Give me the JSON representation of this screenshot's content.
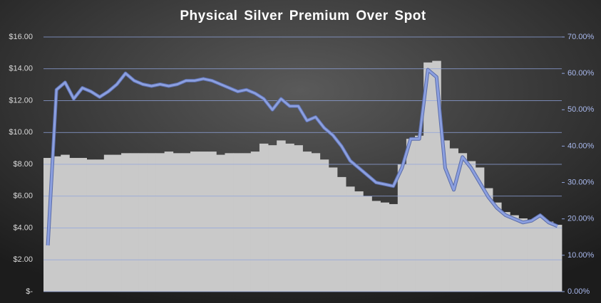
{
  "chart_data": {
    "type": "bar-line",
    "title": "Physical Silver Premium Over Spot",
    "categories": [
      null,
      null,
      null,
      null,
      null,
      null,
      null,
      null,
      null,
      null,
      null,
      null,
      null,
      null,
      null,
      null,
      null,
      null,
      null,
      null,
      null,
      null,
      null,
      null,
      null,
      null,
      null,
      null,
      null,
      null,
      null,
      null,
      null,
      null,
      null,
      null,
      null,
      null,
      null,
      null,
      null,
      null,
      null,
      null,
      null,
      null,
      null,
      null,
      null,
      null,
      null,
      null,
      null,
      null,
      null,
      null,
      null,
      null,
      null,
      null
    ],
    "series": [
      {
        "kind": "bar",
        "color": "#c9c9c9",
        "values": [
          8.4,
          8.5,
          8.6,
          8.4,
          8.4,
          8.3,
          8.3,
          8.6,
          8.6,
          8.7,
          8.7,
          8.7,
          8.7,
          8.7,
          8.8,
          8.7,
          8.7,
          8.8,
          8.8,
          8.8,
          8.6,
          8.7,
          8.7,
          8.7,
          8.8,
          9.3,
          9.2,
          9.5,
          9.3,
          9.2,
          8.8,
          8.7,
          8.3,
          7.8,
          7.2,
          6.6,
          6.3,
          6.0,
          5.7,
          5.6,
          5.5,
          8.0,
          9.6,
          9.8,
          14.4,
          14.5,
          9.5,
          9.0,
          8.7,
          8.2,
          7.8,
          6.5,
          5.6,
          5.0,
          4.8,
          4.6,
          4.5,
          4.7,
          4.4,
          4.2
        ]
      },
      {
        "kind": "line",
        "axis": "y2",
        "color": "#8b9fe0",
        "values": [
          12.7,
          55.5,
          57.5,
          53,
          56,
          55,
          53.5,
          55,
          57,
          60,
          58,
          57,
          56.5,
          57,
          56.5,
          57,
          58,
          58,
          58.5,
          58,
          57,
          56,
          55,
          55.5,
          54.5,
          53,
          50,
          53,
          51,
          51,
          47,
          48,
          45,
          43,
          40,
          36,
          34,
          32,
          30,
          29.5,
          29,
          34,
          42,
          42,
          61,
          59,
          34,
          28,
          37,
          34,
          30,
          26,
          23,
          21,
          20,
          19,
          19.5,
          21,
          19,
          18
        ]
      }
    ],
    "ylim": [
      0,
      16
    ],
    "yticks": [
      {
        "value": 0,
        "label": "$-"
      },
      {
        "value": 2,
        "label": "$2.00"
      },
      {
        "value": 4,
        "label": "$4.00"
      },
      {
        "value": 6,
        "label": "$6.00"
      },
      {
        "value": 8,
        "label": "$8.00"
      },
      {
        "value": 10,
        "label": "$10.00"
      },
      {
        "value": 12,
        "label": "$12.00"
      },
      {
        "value": 14,
        "label": "$14.00"
      },
      {
        "value": 16,
        "label": "$16.00"
      }
    ],
    "y2lim": [
      0,
      70
    ],
    "y2ticks": [
      {
        "value": 0,
        "label": "0.00%"
      },
      {
        "value": 10,
        "label": "10.00%"
      },
      {
        "value": 20,
        "label": "20.00%"
      },
      {
        "value": 30,
        "label": "30.00%"
      },
      {
        "value": 40,
        "label": "40.00%"
      },
      {
        "value": 50,
        "label": "50.00%"
      },
      {
        "value": 60,
        "label": "60.00%"
      },
      {
        "value": 70,
        "label": "70.00%"
      }
    ],
    "grid": true,
    "grid_color": "#8fa3dc"
  }
}
